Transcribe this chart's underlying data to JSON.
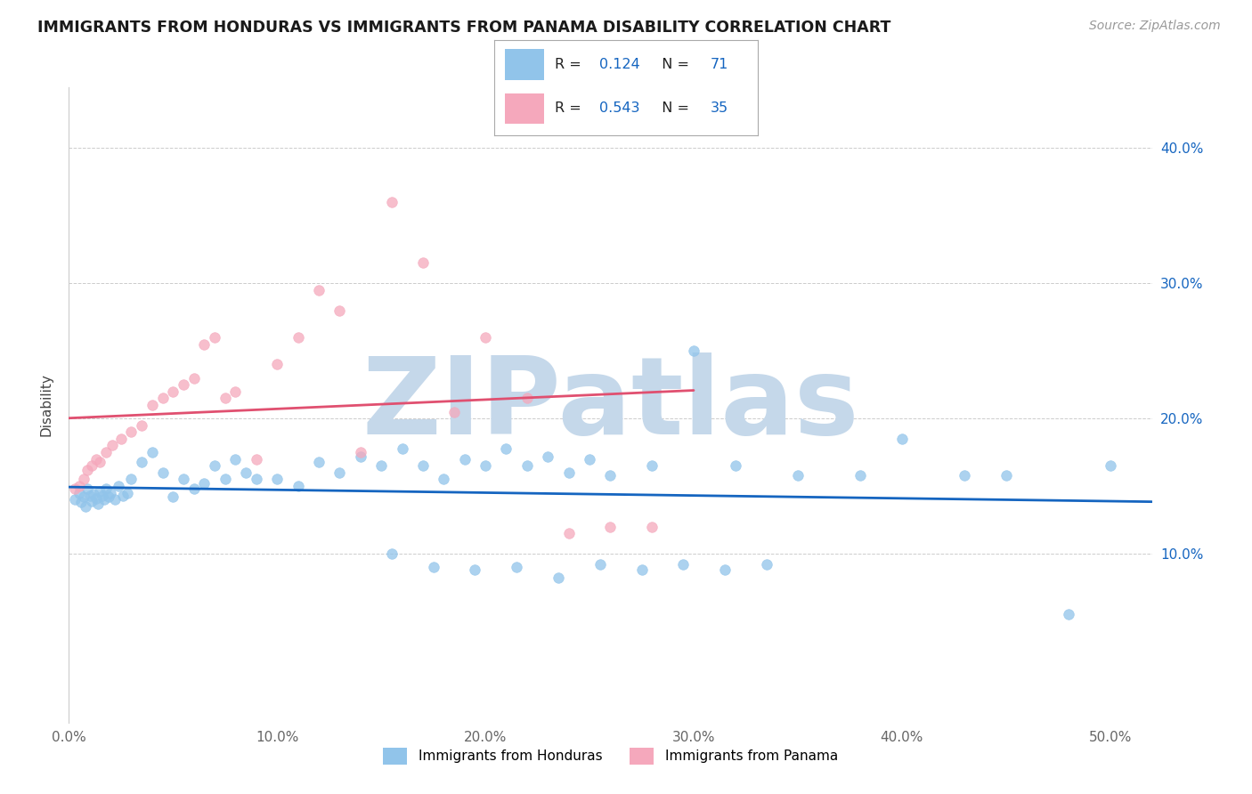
{
  "title": "IMMIGRANTS FROM HONDURAS VS IMMIGRANTS FROM PANAMA DISABILITY CORRELATION CHART",
  "source": "Source: ZipAtlas.com",
  "ylabel": "Disability",
  "xlim": [
    0.0,
    0.52
  ],
  "ylim": [
    -0.025,
    0.445
  ],
  "xtick_vals": [
    0.0,
    0.1,
    0.2,
    0.3,
    0.4,
    0.5
  ],
  "xtick_labels": [
    "0.0%",
    "10.0%",
    "20.0%",
    "30.0%",
    "40.0%",
    "50.0%"
  ],
  "ytick_vals": [
    0.1,
    0.2,
    0.3,
    0.4
  ],
  "ytick_labels": [
    "10.0%",
    "20.0%",
    "30.0%",
    "40.0%"
  ],
  "honduras_scatter_color": "#91c4ea",
  "panama_scatter_color": "#f5a8bc",
  "honduras_line_color": "#1565C0",
  "panama_line_color": "#E05070",
  "r_honduras": "0.124",
  "n_honduras": "71",
  "r_panama": "0.543",
  "n_panama": "35",
  "stat_color": "#1565C0",
  "watermark_text": "ZIPatlas",
  "watermark_color": "#C5D8EA",
  "legend_blue": "#91c4ea",
  "legend_pink": "#f5a8bc",
  "legend_label_1": "Immigrants from Honduras",
  "legend_label_2": "Immigrants from Panama",
  "background_color": "#ffffff",
  "grid_color": "#cccccc",
  "title_color": "#1a1a1a",
  "source_color": "#999999",
  "ylabel_color": "#444444",
  "tick_color": "#666666",
  "right_ytick_color": "#1565C0",
  "honduras_x": [
    0.003,
    0.005,
    0.006,
    0.007,
    0.008,
    0.009,
    0.01,
    0.011,
    0.012,
    0.013,
    0.014,
    0.015,
    0.016,
    0.017,
    0.018,
    0.019,
    0.02,
    0.022,
    0.024,
    0.026,
    0.028,
    0.03,
    0.035,
    0.04,
    0.045,
    0.05,
    0.055,
    0.06,
    0.065,
    0.07,
    0.075,
    0.08,
    0.085,
    0.09,
    0.1,
    0.11,
    0.12,
    0.13,
    0.14,
    0.15,
    0.16,
    0.17,
    0.18,
    0.19,
    0.2,
    0.21,
    0.22,
    0.23,
    0.24,
    0.25,
    0.26,
    0.28,
    0.3,
    0.32,
    0.35,
    0.38,
    0.4,
    0.43,
    0.45,
    0.48,
    0.5,
    0.155,
    0.175,
    0.195,
    0.215,
    0.235,
    0.255,
    0.275,
    0.295,
    0.315,
    0.335
  ],
  "honduras_y": [
    0.14,
    0.145,
    0.138,
    0.142,
    0.135,
    0.148,
    0.143,
    0.139,
    0.144,
    0.141,
    0.137,
    0.146,
    0.143,
    0.14,
    0.148,
    0.142,
    0.145,
    0.14,
    0.15,
    0.143,
    0.145,
    0.155,
    0.168,
    0.175,
    0.16,
    0.142,
    0.155,
    0.148,
    0.152,
    0.165,
    0.155,
    0.17,
    0.16,
    0.155,
    0.155,
    0.15,
    0.168,
    0.16,
    0.172,
    0.165,
    0.178,
    0.165,
    0.155,
    0.17,
    0.165,
    0.178,
    0.165,
    0.172,
    0.16,
    0.17,
    0.158,
    0.165,
    0.25,
    0.165,
    0.158,
    0.158,
    0.185,
    0.158,
    0.158,
    0.055,
    0.165,
    0.1,
    0.09,
    0.088,
    0.09,
    0.082,
    0.092,
    0.088,
    0.092,
    0.088,
    0.092
  ],
  "panama_x": [
    0.003,
    0.005,
    0.007,
    0.009,
    0.011,
    0.013,
    0.015,
    0.018,
    0.021,
    0.025,
    0.03,
    0.035,
    0.04,
    0.045,
    0.05,
    0.055,
    0.06,
    0.065,
    0.07,
    0.075,
    0.08,
    0.09,
    0.1,
    0.11,
    0.12,
    0.13,
    0.14,
    0.155,
    0.17,
    0.185,
    0.2,
    0.22,
    0.24,
    0.26,
    0.28
  ],
  "panama_y": [
    0.148,
    0.15,
    0.155,
    0.162,
    0.165,
    0.17,
    0.168,
    0.175,
    0.18,
    0.185,
    0.19,
    0.195,
    0.21,
    0.215,
    0.22,
    0.225,
    0.23,
    0.255,
    0.26,
    0.215,
    0.22,
    0.17,
    0.24,
    0.26,
    0.295,
    0.28,
    0.175,
    0.36,
    0.315,
    0.205,
    0.26,
    0.215,
    0.115,
    0.12,
    0.12
  ]
}
